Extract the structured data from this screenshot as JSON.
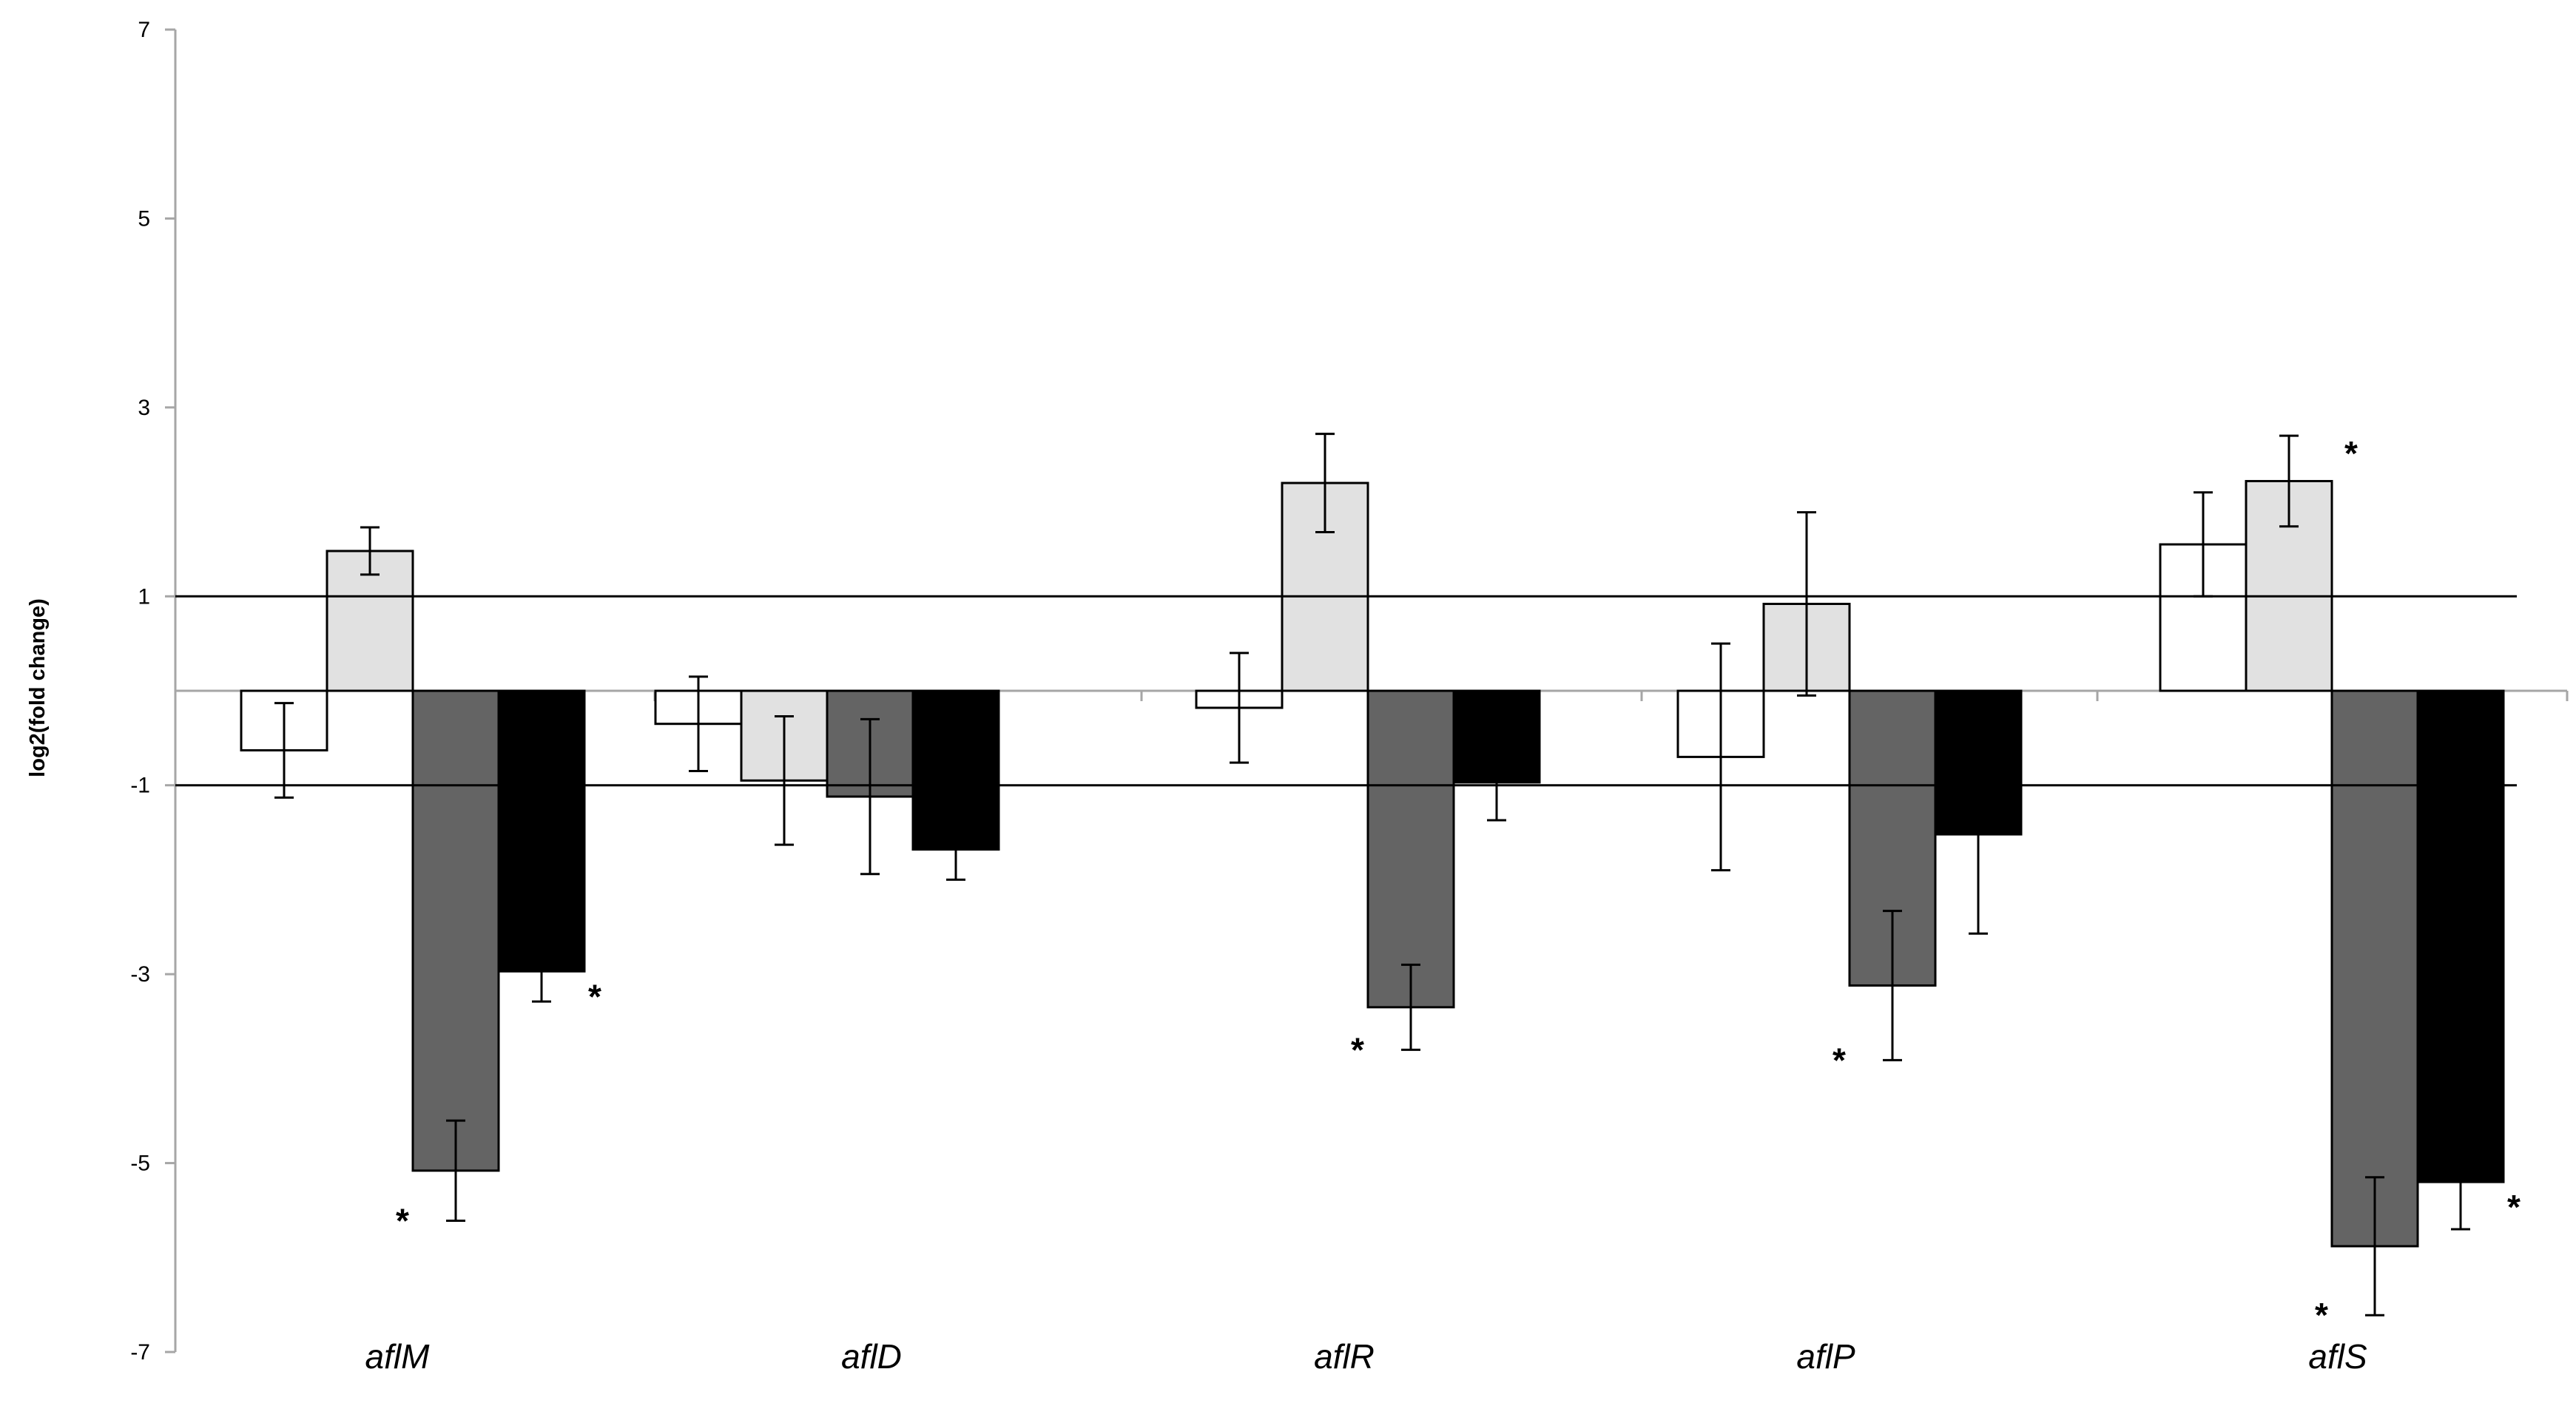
{
  "chart_data": {
    "type": "bar",
    "title": "",
    "xlabel": "",
    "ylabel": "log2(fold change)",
    "ylim": [
      -7,
      7
    ],
    "yticks": [
      "7",
      "5",
      "3",
      "1",
      "-1",
      "-3",
      "-5",
      "-7"
    ],
    "ytick_values": [
      7,
      5,
      3,
      1,
      -1,
      -3,
      -5,
      -7
    ],
    "threshold_lines": [
      1,
      -1
    ],
    "grid": false,
    "legend": "none",
    "categories": [
      "aflM",
      "aflD",
      "aflR",
      "aflP",
      "aflS"
    ],
    "series": [
      {
        "fill": "#ffffff",
        "values": [
          -0.63,
          -0.35,
          -0.18,
          -0.7,
          1.55
        ],
        "errors": [
          0.5,
          0.5,
          0.58,
          1.2,
          0.55
        ]
      },
      {
        "fill": "#e1e1e1",
        "values": [
          1.48,
          -0.95,
          2.2,
          0.92,
          2.22
        ],
        "errors": [
          0.25,
          0.68,
          0.52,
          0.97,
          0.48
        ]
      },
      {
        "fill": "#646464",
        "values": [
          -5.08,
          -1.12,
          -3.35,
          -3.12,
          -5.88
        ],
        "errors": [
          0.53,
          0.82,
          0.45,
          0.79,
          0.73
        ]
      },
      {
        "fill": "#000000",
        "values": [
          -2.97,
          -1.68,
          -0.97,
          -1.52,
          -5.2
        ],
        "errors": [
          0.32,
          0.32,
          0.4,
          1.05,
          0.5
        ]
      }
    ],
    "significance_marker": "*",
    "significant": [
      {
        "category": 0,
        "series": 2,
        "place": "below-left"
      },
      {
        "category": 0,
        "series": 3,
        "place": "below-right"
      },
      {
        "category": 2,
        "series": 2,
        "place": "below-left"
      },
      {
        "category": 3,
        "series": 2,
        "place": "below-left"
      },
      {
        "category": 4,
        "series": 1,
        "place": "above-right"
      },
      {
        "category": 4,
        "series": 2,
        "place": "below-left"
      },
      {
        "category": 4,
        "series": 3,
        "place": "below-right"
      }
    ]
  }
}
